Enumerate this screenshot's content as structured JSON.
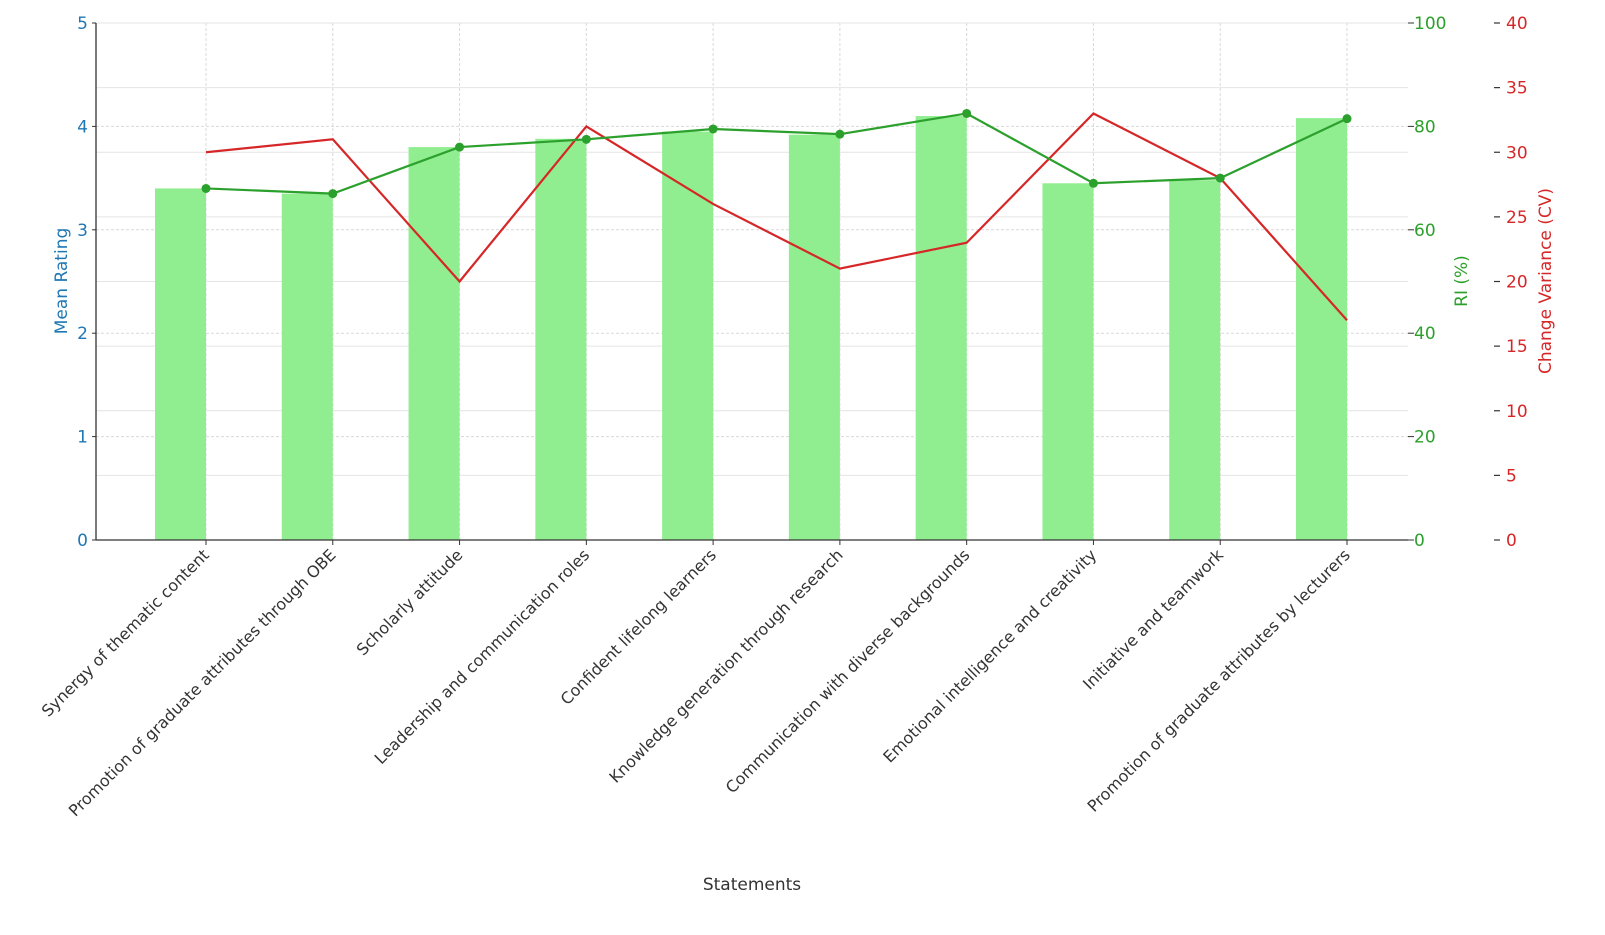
{
  "chart_data": {
    "type": "bar",
    "title": "",
    "xlabel": "Statements",
    "ylabel": "Mean Rating",
    "ylabel_right_1": "RI (%)",
    "ylabel_right_2": "Change Variance (CV)",
    "ylim": [
      0,
      5
    ],
    "ylim_right_1": [
      0,
      100
    ],
    "ylim_right_2": [
      0,
      40
    ],
    "yticks": [
      0,
      1,
      2,
      3,
      4,
      5
    ],
    "yticks_right_1": [
      0,
      20,
      40,
      60,
      80,
      100
    ],
    "yticks_right_2": [
      0,
      5,
      10,
      15,
      20,
      25,
      30,
      35,
      40
    ],
    "grid": true,
    "legend": null,
    "categories": [
      "Synergy of thematic content",
      "Promotion of graduate attributes through OBE",
      "Scholarly attitude",
      "Leadership and communication roles",
      "Confident lifelong learners",
      "Knowledge generation through research",
      "Communication with diverse backgrounds",
      "Emotional intelligence and creativity",
      "Initiative and teamwork",
      "Promotion of graduate attributes by lecturers"
    ],
    "series": [
      {
        "name": "Mean Rating",
        "type": "bar",
        "axis": "left",
        "color": "#90ee90",
        "values": [
          3.4,
          3.35,
          3.8,
          3.88,
          3.95,
          3.92,
          4.1,
          3.45,
          3.48,
          4.08
        ]
      },
      {
        "name": "RI (%)",
        "type": "line",
        "axis": "right_1",
        "color": "#2ca02c",
        "marker": "circle",
        "values": [
          68,
          67,
          76,
          77.5,
          79.5,
          78.5,
          82.5,
          69,
          70,
          81.5
        ]
      },
      {
        "name": "Change Variance (CV)",
        "type": "line",
        "axis": "right_2",
        "color": "#d62728",
        "marker": "none",
        "values": [
          30,
          31,
          20,
          32,
          26,
          21,
          23,
          33,
          28,
          17
        ]
      }
    ]
  },
  "colors": {
    "left_axis": "#1f77b4",
    "right_axis_1": "#2ca02c",
    "right_axis_2": "#d62728",
    "grid": "#d9d9d9",
    "axis_line": "#333333",
    "tick_label": "#333333"
  }
}
